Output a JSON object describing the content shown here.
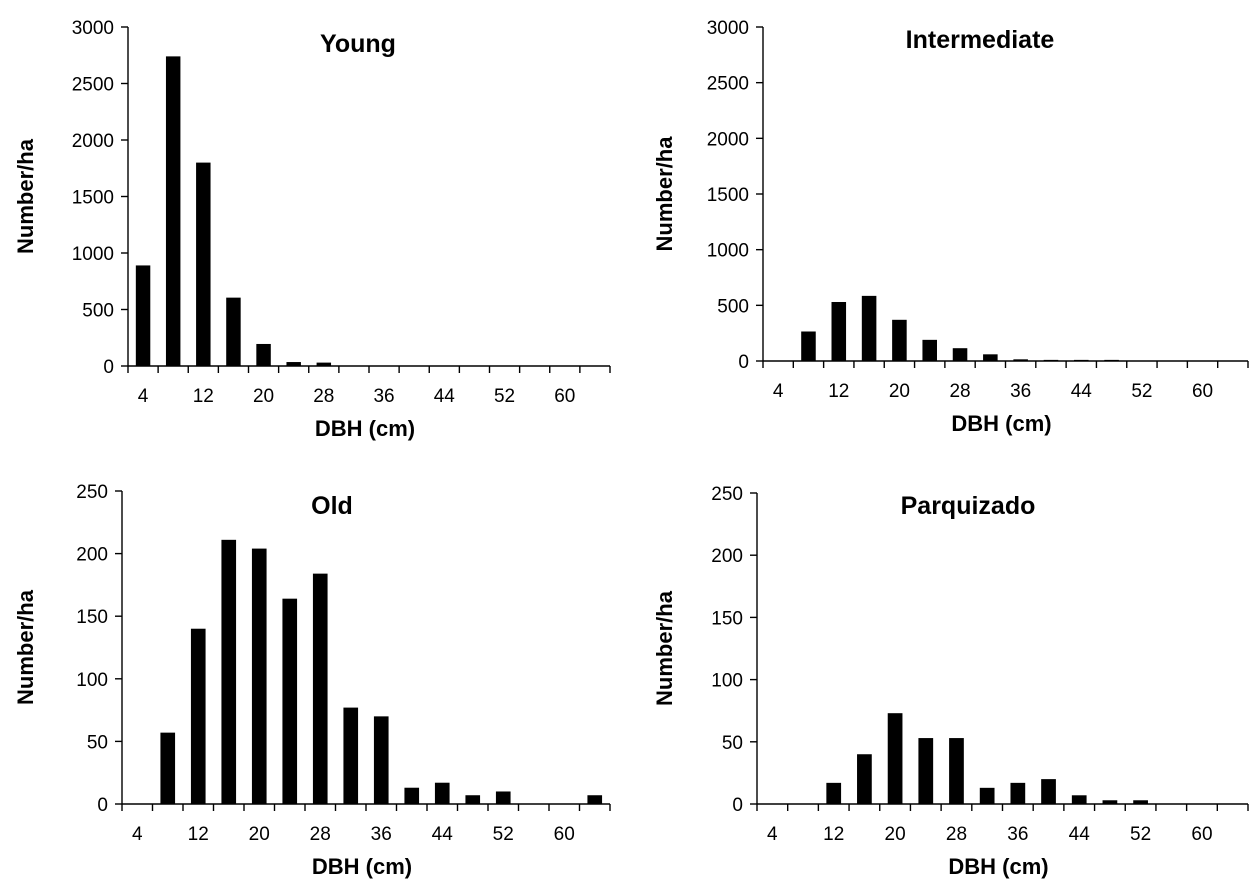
{
  "chart_data": [
    {
      "type": "bar",
      "title": "Young",
      "xlabel": "DBH (cm)",
      "ylabel": "Number/ha",
      "ylim": [
        0,
        3000
      ],
      "yticks": [
        0,
        500,
        1000,
        1500,
        2000,
        2500,
        3000
      ],
      "xtick_labels": [
        "4",
        "12",
        "20",
        "28",
        "36",
        "44",
        "52",
        "60"
      ],
      "categories": [
        4,
        8,
        12,
        16,
        20,
        24,
        28,
        32,
        36,
        40,
        44,
        48,
        52,
        56,
        60,
        64
      ],
      "values": [
        890,
        2740,
        1800,
        605,
        195,
        35,
        30,
        0,
        0,
        0,
        0,
        0,
        0,
        0,
        0,
        0
      ]
    },
    {
      "type": "bar",
      "title": "Intermediate",
      "xlabel": "DBH (cm)",
      "ylabel": "Number/ha",
      "ylim": [
        0,
        3000
      ],
      "yticks": [
        0,
        500,
        1000,
        1500,
        2000,
        2500,
        3000
      ],
      "xtick_labels": [
        "4",
        "12",
        "20",
        "28",
        "36",
        "44",
        "52",
        "60"
      ],
      "categories": [
        4,
        8,
        12,
        16,
        20,
        24,
        28,
        32,
        36,
        40,
        44,
        48,
        52,
        56,
        60,
        64
      ],
      "values": [
        0,
        265,
        530,
        585,
        370,
        190,
        115,
        60,
        15,
        10,
        10,
        10,
        0,
        0,
        0,
        0
      ]
    },
    {
      "type": "bar",
      "title": "Old",
      "xlabel": "DBH (cm)",
      "ylabel": "Number/ha",
      "ylim": [
        0,
        250
      ],
      "yticks": [
        0,
        50,
        100,
        150,
        200,
        250
      ],
      "xtick_labels": [
        "4",
        "12",
        "20",
        "28",
        "36",
        "44",
        "52",
        "60"
      ],
      "categories": [
        4,
        8,
        12,
        16,
        20,
        24,
        28,
        32,
        36,
        40,
        44,
        48,
        52,
        56,
        60,
        64
      ],
      "values": [
        0,
        57,
        140,
        211,
        204,
        164,
        184,
        77,
        70,
        13,
        17,
        7,
        10,
        0,
        0,
        7
      ]
    },
    {
      "type": "bar",
      "title": "Parquizado",
      "xlabel": "DBH (cm)",
      "ylabel": "Number/ha",
      "ylim": [
        0,
        250
      ],
      "yticks": [
        0,
        50,
        100,
        150,
        200,
        250
      ],
      "xtick_labels": [
        "4",
        "12",
        "20",
        "28",
        "36",
        "44",
        "52",
        "60"
      ],
      "categories": [
        4,
        8,
        12,
        16,
        20,
        24,
        28,
        32,
        36,
        40,
        44,
        48,
        52,
        56,
        60,
        64
      ],
      "values": [
        0,
        0,
        17,
        40,
        73,
        53,
        53,
        13,
        17,
        20,
        7,
        3,
        3,
        0,
        0,
        0
      ]
    }
  ]
}
